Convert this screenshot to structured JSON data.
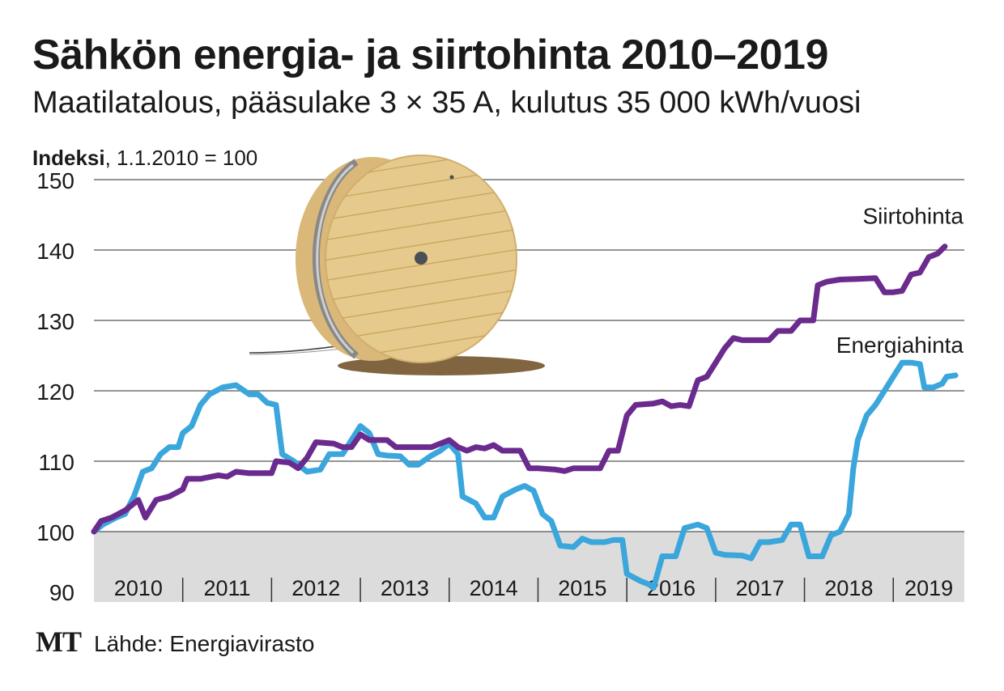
{
  "title": "Sähkön energia- ja siirtohinta 2010–2019",
  "subtitle": "Maatilatalous, pääsulake 3 × 35 A, kulutus 35 000 kWh/vuosi",
  "ylabel_bold": "Indeksi",
  "ylabel_rest": ", 1.1.2010 = 100",
  "source": "Lähde: Energiavirasto",
  "logo": "MT",
  "colors": {
    "siirtohinta": "#6a2a8e",
    "energiahinta": "#3aa6dc",
    "below100": "#dcdcdc",
    "grid": "#555555"
  },
  "illustration": "cable-reel",
  "chart_data": {
    "type": "line",
    "ylim": [
      90,
      150
    ],
    "yticks": [
      90,
      100,
      110,
      120,
      130,
      140,
      150
    ],
    "xlim": [
      2010,
      2019.8
    ],
    "x_labels": [
      "2010",
      "2011",
      "2012",
      "2013",
      "2014",
      "2015",
      "2016",
      "2017",
      "2018",
      "2019"
    ],
    "series": [
      {
        "name": "Siirtohinta",
        "key": "siirtohinta",
        "points": [
          [
            2010.0,
            100
          ],
          [
            2010.08,
            101.5
          ],
          [
            2010.2,
            102
          ],
          [
            2010.35,
            103
          ],
          [
            2010.5,
            104.5
          ],
          [
            2010.58,
            102
          ],
          [
            2010.7,
            104.5
          ],
          [
            2010.85,
            105
          ],
          [
            2011.0,
            106
          ],
          [
            2011.05,
            107.5
          ],
          [
            2011.2,
            107.5
          ],
          [
            2011.4,
            108
          ],
          [
            2011.5,
            107.8
          ],
          [
            2011.6,
            108.5
          ],
          [
            2011.75,
            108.3
          ],
          [
            2012.0,
            108.3
          ],
          [
            2012.05,
            110
          ],
          [
            2012.2,
            109.8
          ],
          [
            2012.3,
            109
          ],
          [
            2012.4,
            110.5
          ],
          [
            2012.5,
            112.7
          ],
          [
            2012.7,
            112.5
          ],
          [
            2012.8,
            112
          ],
          [
            2012.9,
            112
          ],
          [
            2013.0,
            113.8
          ],
          [
            2013.1,
            113
          ],
          [
            2013.3,
            113
          ],
          [
            2013.4,
            112
          ],
          [
            2013.6,
            112
          ],
          [
            2013.8,
            112
          ],
          [
            2014.0,
            113
          ],
          [
            2014.1,
            112
          ],
          [
            2014.2,
            111.5
          ],
          [
            2014.3,
            112
          ],
          [
            2014.4,
            111.8
          ],
          [
            2014.5,
            112.3
          ],
          [
            2014.6,
            111.5
          ],
          [
            2014.8,
            111.5
          ],
          [
            2014.9,
            109
          ],
          [
            2015.0,
            109
          ],
          [
            2015.2,
            108.8
          ],
          [
            2015.3,
            108.6
          ],
          [
            2015.4,
            109
          ],
          [
            2015.5,
            109
          ],
          [
            2015.7,
            109
          ],
          [
            2015.8,
            111.5
          ],
          [
            2015.9,
            111.5
          ],
          [
            2016.0,
            116.5
          ],
          [
            2016.1,
            118
          ],
          [
            2016.3,
            118.2
          ],
          [
            2016.4,
            118.5
          ],
          [
            2016.5,
            117.8
          ],
          [
            2016.6,
            118
          ],
          [
            2016.7,
            117.8
          ],
          [
            2016.8,
            121.5
          ],
          [
            2016.9,
            122
          ],
          [
            2017.0,
            124
          ],
          [
            2017.1,
            126
          ],
          [
            2017.2,
            127.5
          ],
          [
            2017.3,
            127.2
          ],
          [
            2017.5,
            127.2
          ],
          [
            2017.6,
            127.2
          ],
          [
            2017.7,
            128.5
          ],
          [
            2017.85,
            128.5
          ],
          [
            2017.95,
            130
          ],
          [
            2018.1,
            130
          ],
          [
            2018.15,
            135
          ],
          [
            2018.25,
            135.5
          ],
          [
            2018.4,
            135.8
          ],
          [
            2018.6,
            135.9
          ],
          [
            2018.8,
            136
          ],
          [
            2018.9,
            134
          ],
          [
            2019.0,
            134
          ],
          [
            2019.1,
            134.2
          ],
          [
            2019.2,
            136.5
          ],
          [
            2019.3,
            136.8
          ],
          [
            2019.4,
            139
          ],
          [
            2019.5,
            139.5
          ],
          [
            2019.58,
            140.5
          ]
        ]
      },
      {
        "name": "Energiahinta",
        "key": "energiahinta",
        "points": [
          [
            2010.0,
            100
          ],
          [
            2010.1,
            101
          ],
          [
            2010.25,
            102
          ],
          [
            2010.35,
            102.5
          ],
          [
            2010.45,
            105
          ],
          [
            2010.55,
            108.5
          ],
          [
            2010.65,
            109
          ],
          [
            2010.75,
            111
          ],
          [
            2010.85,
            112
          ],
          [
            2010.95,
            112
          ],
          [
            2011.0,
            114
          ],
          [
            2011.1,
            115
          ],
          [
            2011.2,
            118
          ],
          [
            2011.3,
            119.5
          ],
          [
            2011.45,
            120.5
          ],
          [
            2011.6,
            120.8
          ],
          [
            2011.75,
            119.5
          ],
          [
            2011.85,
            119.5
          ],
          [
            2011.95,
            118.3
          ],
          [
            2012.05,
            118
          ],
          [
            2012.12,
            111
          ],
          [
            2012.25,
            110
          ],
          [
            2012.4,
            108.5
          ],
          [
            2012.55,
            108.8
          ],
          [
            2012.65,
            111
          ],
          [
            2012.8,
            111
          ],
          [
            2012.9,
            113
          ],
          [
            2013.0,
            115
          ],
          [
            2013.1,
            114
          ],
          [
            2013.2,
            111
          ],
          [
            2013.3,
            110.8
          ],
          [
            2013.45,
            110.7
          ],
          [
            2013.55,
            109.5
          ],
          [
            2013.65,
            109.5
          ],
          [
            2013.8,
            110.8
          ],
          [
            2013.9,
            111.5
          ],
          [
            2014.0,
            112.5
          ],
          [
            2014.1,
            111
          ],
          [
            2014.15,
            105
          ],
          [
            2014.3,
            104
          ],
          [
            2014.4,
            102
          ],
          [
            2014.5,
            102
          ],
          [
            2014.6,
            105
          ],
          [
            2014.75,
            106
          ],
          [
            2014.85,
            106.5
          ],
          [
            2014.95,
            105.8
          ],
          [
            2015.05,
            102.5
          ],
          [
            2015.15,
            101.5
          ],
          [
            2015.25,
            98
          ],
          [
            2015.4,
            97.8
          ],
          [
            2015.5,
            99
          ],
          [
            2015.6,
            98.5
          ],
          [
            2015.75,
            98.5
          ],
          [
            2015.85,
            98.8
          ],
          [
            2015.95,
            98.8
          ],
          [
            2016.0,
            94
          ],
          [
            2016.15,
            93
          ],
          [
            2016.25,
            92.5
          ],
          [
            2016.3,
            92
          ],
          [
            2016.4,
            96.5
          ],
          [
            2016.55,
            96.5
          ],
          [
            2016.65,
            100.5
          ],
          [
            2016.8,
            101
          ],
          [
            2016.9,
            100.5
          ],
          [
            2017.0,
            97
          ],
          [
            2017.1,
            96.7
          ],
          [
            2017.3,
            96.6
          ],
          [
            2017.4,
            96.2
          ],
          [
            2017.5,
            98.5
          ],
          [
            2017.6,
            98.5
          ],
          [
            2017.75,
            98.8
          ],
          [
            2017.85,
            101
          ],
          [
            2017.95,
            101
          ],
          [
            2018.05,
            96.5
          ],
          [
            2018.2,
            96.5
          ],
          [
            2018.3,
            99.5
          ],
          [
            2018.4,
            100
          ],
          [
            2018.5,
            102.5
          ],
          [
            2018.55,
            109
          ],
          [
            2018.6,
            113
          ],
          [
            2018.7,
            116.5
          ],
          [
            2018.8,
            118
          ],
          [
            2018.9,
            120
          ],
          [
            2019.0,
            122
          ],
          [
            2019.1,
            124
          ],
          [
            2019.2,
            124
          ],
          [
            2019.3,
            123.8
          ],
          [
            2019.35,
            120.5
          ],
          [
            2019.45,
            120.5
          ],
          [
            2019.55,
            121
          ],
          [
            2019.6,
            122
          ],
          [
            2019.7,
            122.2
          ]
        ]
      }
    ]
  }
}
